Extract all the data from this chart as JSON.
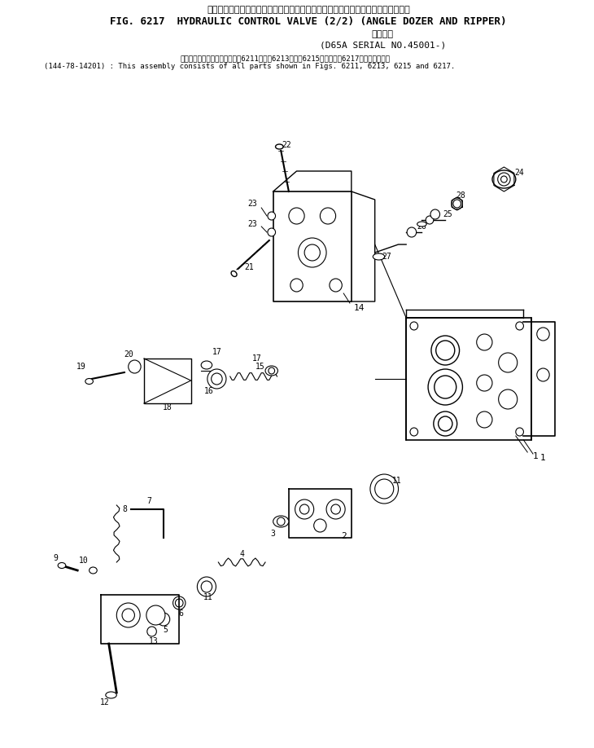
{
  "title_jp": "ハイドロリック　コントロール　バルブ　　　アングル　ドーザ　および　リッパ",
  "title_en": "FIG. 6217  HYDRAULIC CONTROL VALVE (2/2) (ANGLE DOZER AND RIPPER)",
  "subtitle_jp": "適用号機",
  "subtitle_serial": "(D65A SERIAL NO.45001-)",
  "note_jp": "このアセンブリの構成部品は第6211図、第6213図、第6215図および第6217図を含みます。",
  "note_en": "(144-78-14201) : This assembly consists of all parts shown in Figs. 6211, 6213, 6215 and 6217.",
  "bg_color": "#ffffff",
  "line_color": "#000000",
  "fig_width": 7.3,
  "fig_height": 9.18,
  "dpi": 100
}
